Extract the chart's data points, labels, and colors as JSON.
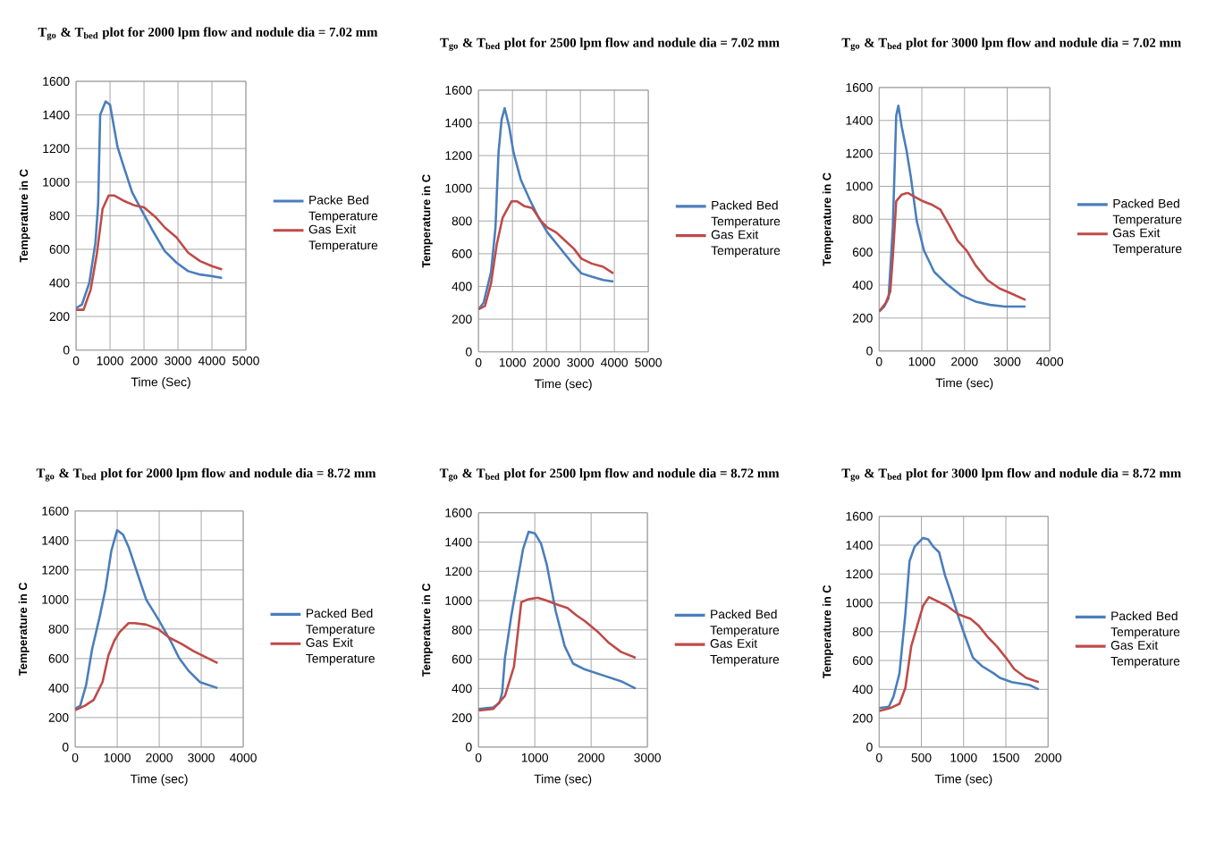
{
  "chart_data": [
    {
      "type": "line",
      "title": "T$_{go}$ & T$_{bed}$ plot for 2000 lpm flow and nodule dia = 7.02 mm",
      "xlabel": "Time (Sec)",
      "ylabel": "Temperature in C",
      "xlim": [
        0,
        5000
      ],
      "xticks": [
        0,
        1000,
        2000,
        3000,
        4000,
        5000
      ],
      "ylim": [
        0,
        1600
      ],
      "yticks": [
        0,
        200,
        400,
        600,
        800,
        1000,
        1200,
        1400,
        1600
      ],
      "grid": true,
      "legend": "right",
      "series": [
        {
          "name": "Packe Bed Temperature",
          "color": "#4a7ebb",
          "x": [
            0,
            170,
            390,
            570,
            650,
            710,
            870,
            1000,
            1220,
            1390,
            1650,
            1910,
            2260,
            2610,
            2960,
            3300,
            3650,
            4000,
            4300
          ],
          "values": [
            250,
            270,
            400,
            640,
            870,
            1400,
            1480,
            1460,
            1210,
            1100,
            940,
            840,
            710,
            590,
            520,
            470,
            450,
            440,
            430
          ]
        },
        {
          "name": "Gas Exit Temperature",
          "color": "#be4b48",
          "x": [
            0,
            220,
            430,
            610,
            780,
            960,
            1130,
            1390,
            1740,
            2000,
            2350,
            2610,
            2960,
            3300,
            3650,
            4000,
            4300
          ],
          "values": [
            240,
            240,
            360,
            570,
            840,
            920,
            920,
            890,
            860,
            850,
            790,
            730,
            670,
            580,
            530,
            500,
            480
          ]
        }
      ]
    },
    {
      "type": "line",
      "title": "T$_{go}$ & T$_{bed}$ plot for 2500 lpm flow and nodule dia = 7.02 mm",
      "xlabel": "Time (sec)",
      "ylabel": "Temperature in C",
      "xlim": [
        0,
        5000
      ],
      "xticks": [
        0,
        1000,
        2000,
        3000,
        4000,
        5000
      ],
      "ylim": [
        0,
        1600
      ],
      "yticks": [
        0,
        200,
        400,
        600,
        800,
        1000,
        1200,
        1400,
        1600
      ],
      "grid": true,
      "legend": "right",
      "series": [
        {
          "name": "Packed Bed Temperature",
          "color": "#4a7ebb",
          "x": [
            0,
            150,
            370,
            500,
            590,
            680,
            770,
            900,
            1030,
            1250,
            1510,
            1770,
            2030,
            2380,
            2730,
            3030,
            3330,
            3670,
            3970
          ],
          "values": [
            260,
            300,
            490,
            760,
            1220,
            1420,
            1490,
            1380,
            1220,
            1050,
            930,
            820,
            730,
            640,
            550,
            480,
            460,
            440,
            430
          ]
        },
        {
          "name": "Gas Exit Temperature",
          "color": "#be4b48",
          "x": [
            0,
            190,
            370,
            540,
            710,
            970,
            1140,
            1360,
            1580,
            1840,
            2030,
            2290,
            2550,
            2810,
            3030,
            3330,
            3670,
            3970
          ],
          "values": [
            260,
            280,
            420,
            660,
            820,
            920,
            920,
            890,
            880,
            800,
            760,
            730,
            680,
            630,
            570,
            540,
            520,
            480
          ]
        }
      ]
    },
    {
      "type": "line",
      "title": "T$_{go}$ & T$_{bed}$ plot for 3000 lpm flow and nodule dia = 7.02 mm",
      "xlabel": "Time (sec)",
      "ylabel": "Temperature in C",
      "xlim": [
        0,
        4000
      ],
      "xticks": [
        0,
        1000,
        2000,
        3000,
        4000
      ],
      "ylim": [
        0,
        1600
      ],
      "yticks": [
        0,
        200,
        400,
        600,
        800,
        1000,
        1200,
        1400,
        1600
      ],
      "grid": true,
      "legend": "right",
      "series": [
        {
          "name": "Packed Bed Temperature",
          "color": "#4a7ebb",
          "x": [
            0,
            120,
            220,
            320,
            400,
            450,
            530,
            640,
            740,
            880,
            1050,
            1290,
            1570,
            1910,
            2260,
            2600,
            2940,
            3430
          ],
          "values": [
            240,
            270,
            320,
            750,
            1430,
            1490,
            1360,
            1220,
            1060,
            790,
            610,
            480,
            410,
            340,
            300,
            280,
            270,
            270
          ]
        },
        {
          "name": "Gas Exit Temperature",
          "color": "#be4b48",
          "x": [
            0,
            150,
            260,
            320,
            400,
            530,
            670,
            810,
            1020,
            1220,
            1430,
            1630,
            1840,
            2050,
            2260,
            2540,
            2820,
            3090,
            3430
          ],
          "values": [
            240,
            290,
            360,
            570,
            910,
            950,
            960,
            940,
            910,
            890,
            860,
            770,
            670,
            610,
            520,
            430,
            380,
            350,
            310
          ]
        }
      ]
    },
    {
      "type": "line",
      "title": "T$_{go}$ & T$_{bed}$ plot for 2000 lpm flow and nodule dia = 8.72 mm",
      "xlabel": "Time (sec)",
      "ylabel": "Temperature in C",
      "xlim": [
        0,
        4000
      ],
      "xticks": [
        0,
        1000,
        2000,
        3000,
        4000
      ],
      "ylim": [
        0,
        1600
      ],
      "yticks": [
        0,
        200,
        400,
        600,
        800,
        1000,
        1200,
        1400,
        1600
      ],
      "grid": true,
      "legend": "right",
      "series": [
        {
          "name": "Packed Bed Temperature",
          "color": "#4a7ebb",
          "x": [
            0,
            120,
            260,
            400,
            580,
            720,
            860,
            1000,
            1140,
            1280,
            1490,
            1690,
            1990,
            2270,
            2480,
            2690,
            2970,
            3390
          ],
          "values": [
            260,
            280,
            420,
            660,
            880,
            1070,
            1330,
            1470,
            1440,
            1350,
            1170,
            1000,
            860,
            720,
            600,
            520,
            440,
            400
          ]
        },
        {
          "name": "Gas Exit Temperature",
          "color": "#be4b48",
          "x": [
            0,
            230,
            440,
            650,
            790,
            930,
            1060,
            1270,
            1410,
            1690,
            1970,
            2250,
            2530,
            2820,
            3100,
            3390
          ],
          "values": [
            250,
            280,
            320,
            440,
            620,
            720,
            780,
            840,
            840,
            830,
            800,
            740,
            700,
            650,
            610,
            570
          ]
        }
      ]
    },
    {
      "type": "line",
      "title": "T$_{go}$ & T$_{bed}$ plot for 2500 lpm flow and nodule dia = 8.72 mm",
      "xlabel": "Time (sec)",
      "ylabel": "Temperature in C",
      "xlim": [
        0,
        3000
      ],
      "xticks": [
        0,
        1000,
        2000,
        3000
      ],
      "ylim": [
        0,
        1600
      ],
      "yticks": [
        0,
        200,
        400,
        600,
        800,
        1000,
        1200,
        1400,
        1600
      ],
      "grid": true,
      "legend": "right",
      "series": [
        {
          "name": "Packed Bed Temperature",
          "color": "#4a7ebb",
          "x": [
            0,
            260,
            370,
            420,
            470,
            580,
            680,
            790,
            890,
            1000,
            1110,
            1210,
            1370,
            1530,
            1680,
            1890,
            2210,
            2530,
            2790
          ],
          "values": [
            260,
            270,
            300,
            370,
            610,
            890,
            1110,
            1350,
            1470,
            1460,
            1390,
            1250,
            930,
            690,
            570,
            530,
            490,
            450,
            400
          ]
        },
        {
          "name": "Gas Exit Temperature",
          "color": "#be4b48",
          "x": [
            0,
            260,
            470,
            630,
            760,
            890,
            1050,
            1210,
            1420,
            1580,
            1740,
            1890,
            2110,
            2320,
            2530,
            2790
          ],
          "values": [
            250,
            260,
            350,
            550,
            990,
            1010,
            1020,
            1000,
            970,
            950,
            900,
            860,
            790,
            710,
            650,
            610
          ]
        }
      ]
    },
    {
      "type": "line",
      "title": "T$_{go}$ & T$_{bed}$ plot for 3000 lpm flow and nodule dia = 8.72 mm",
      "xlabel": "Time (sec)",
      "ylabel": "Temperature in C",
      "xlim": [
        0,
        2000
      ],
      "xticks": [
        0,
        500,
        1000,
        1500,
        2000
      ],
      "ylim": [
        0,
        1600
      ],
      "yticks": [
        0,
        200,
        400,
        600,
        800,
        1000,
        1200,
        1400,
        1600
      ],
      "grid": true,
      "legend": "right",
      "series": [
        {
          "name": "Packed Bed Temperature",
          "color": "#4a7ebb",
          "x": [
            0,
            115,
            170,
            240,
            310,
            360,
            420,
            520,
            580,
            640,
            710,
            780,
            850,
            940,
            1010,
            1110,
            1220,
            1360,
            1430,
            1570,
            1780,
            1890
          ],
          "values": [
            270,
            280,
            350,
            510,
            920,
            1290,
            1390,
            1450,
            1440,
            1390,
            1350,
            1190,
            1070,
            900,
            780,
            620,
            560,
            510,
            480,
            450,
            430,
            400
          ]
        },
        {
          "name": "Gas Exit Temperature",
          "color": "#be4b48",
          "x": [
            0,
            130,
            240,
            310,
            380,
            450,
            520,
            590,
            660,
            800,
            940,
            1080,
            1180,
            1290,
            1390,
            1500,
            1600,
            1740,
            1890
          ],
          "values": [
            250,
            270,
            300,
            410,
            700,
            840,
            980,
            1040,
            1020,
            980,
            920,
            890,
            840,
            760,
            700,
            620,
            540,
            480,
            450
          ]
        }
      ]
    }
  ]
}
